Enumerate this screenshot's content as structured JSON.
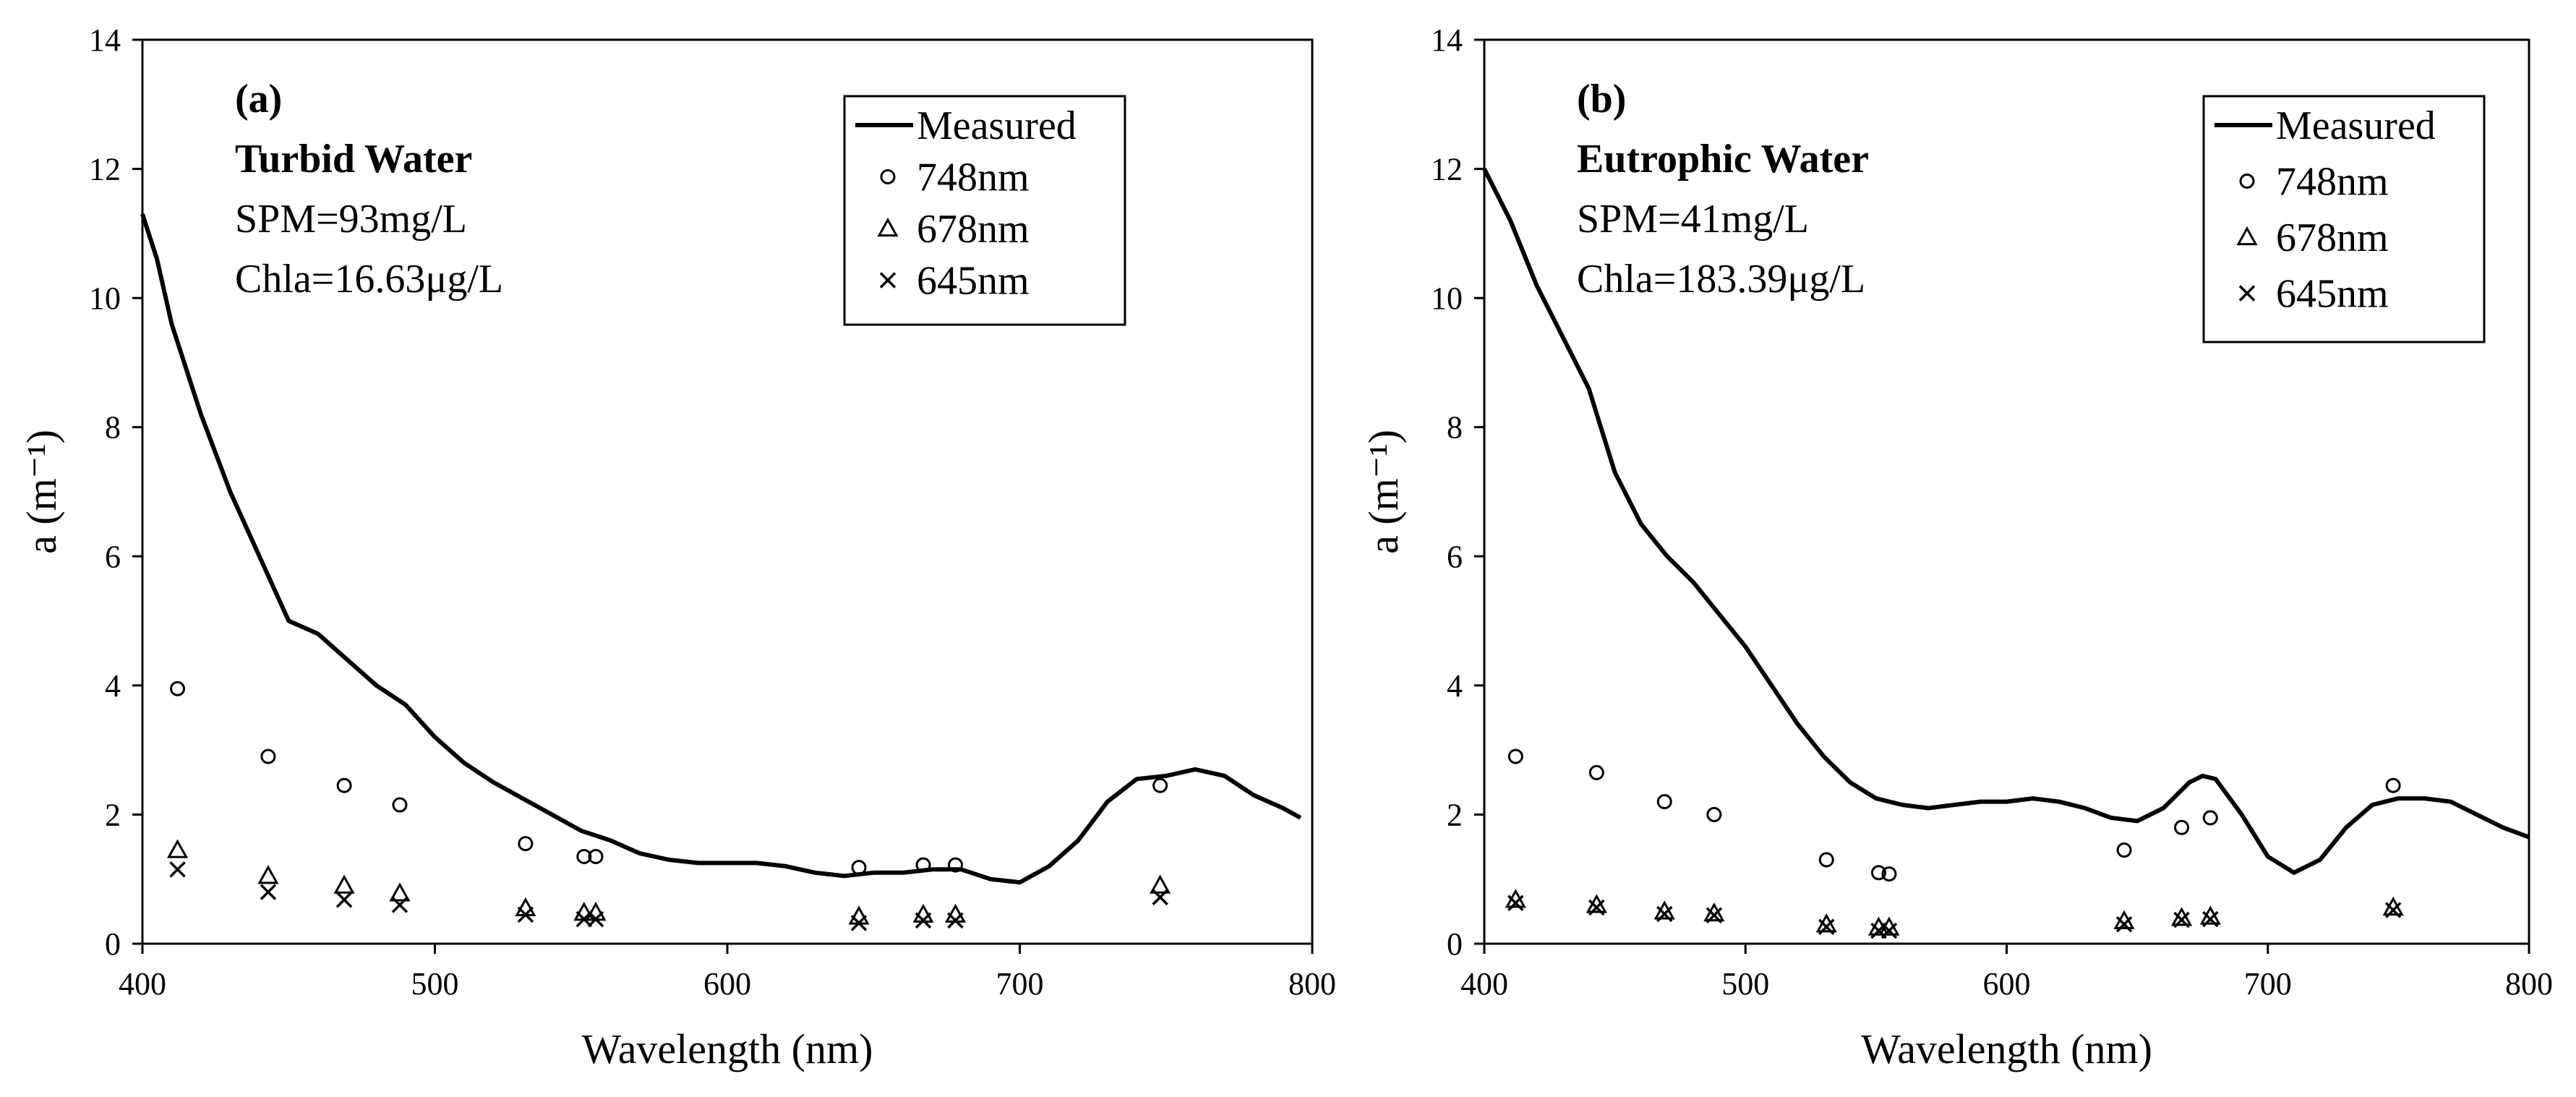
{
  "chart_data": [
    {
      "type": "line",
      "panel": "(a)",
      "title": "Turbid Water",
      "annotations": [
        "SPM=93mg/L",
        "Chla=16.63μg/L"
      ],
      "xlabel": "Wavelength (nm)",
      "ylabel": "a (m⁻¹)",
      "xlim": [
        400,
        800
      ],
      "ylim": [
        0,
        14
      ],
      "xticks": [
        "400",
        "500",
        "600",
        "700",
        "800"
      ],
      "yticks": [
        "0",
        "2",
        "4",
        "6",
        "8",
        "10",
        "12",
        "14"
      ],
      "legend_position": "top-right",
      "series": [
        {
          "name": "Measured",
          "style": "line",
          "x": [
            400,
            405,
            410,
            420,
            430,
            440,
            450,
            460,
            470,
            480,
            490,
            500,
            510,
            520,
            530,
            540,
            550,
            560,
            570,
            580,
            590,
            600,
            610,
            620,
            630,
            640,
            650,
            660,
            670,
            680,
            690,
            700,
            710,
            720,
            730,
            740,
            750,
            760,
            770,
            780,
            790,
            796
          ],
          "y": [
            11.3,
            10.6,
            9.6,
            8.2,
            7.0,
            6.0,
            5.0,
            4.8,
            4.4,
            4.0,
            3.7,
            3.2,
            2.8,
            2.5,
            2.25,
            2.0,
            1.75,
            1.6,
            1.4,
            1.3,
            1.25,
            1.25,
            1.25,
            1.2,
            1.1,
            1.05,
            1.1,
            1.1,
            1.15,
            1.15,
            1.0,
            0.95,
            1.2,
            1.6,
            2.2,
            2.55,
            2.6,
            2.7,
            2.6,
            2.3,
            2.1,
            1.95
          ]
        },
        {
          "name": "748nm",
          "style": "circle",
          "x": [
            412,
            443,
            469,
            488,
            531,
            551,
            555,
            645,
            667,
            678,
            748
          ],
          "y": [
            3.95,
            2.9,
            2.45,
            2.15,
            1.55,
            1.35,
            1.35,
            1.18,
            1.22,
            1.22,
            2.45
          ]
        },
        {
          "name": "678nm",
          "style": "triangle",
          "x": [
            412,
            443,
            469,
            488,
            531,
            551,
            555,
            645,
            667,
            678,
            748
          ],
          "y": [
            1.45,
            1.05,
            0.9,
            0.78,
            0.55,
            0.48,
            0.48,
            0.42,
            0.45,
            0.45,
            0.9
          ]
        },
        {
          "name": "645nm",
          "style": "x",
          "x": [
            412,
            443,
            469,
            488,
            531,
            551,
            555,
            645,
            667,
            678,
            748
          ],
          "y": [
            1.15,
            0.8,
            0.68,
            0.6,
            0.45,
            0.38,
            0.38,
            0.32,
            0.36,
            0.36,
            0.72
          ]
        }
      ]
    },
    {
      "type": "line",
      "panel": "(b)",
      "title": "Eutrophic Water",
      "annotations": [
        "SPM=41mg/L",
        "Chla=183.39μg/L"
      ],
      "xlabel": "Wavelength (nm)",
      "ylabel": "a (m⁻¹)",
      "xlim": [
        400,
        800
      ],
      "ylim": [
        0,
        14
      ],
      "xticks": [
        "400",
        "500",
        "600",
        "700",
        "800"
      ],
      "yticks": [
        "0",
        "2",
        "4",
        "6",
        "8",
        "10",
        "12",
        "14"
      ],
      "legend_position": "top-right",
      "series": [
        {
          "name": "Measured",
          "style": "line",
          "x": [
            400,
            410,
            420,
            430,
            440,
            450,
            460,
            470,
            480,
            490,
            500,
            510,
            520,
            530,
            540,
            550,
            560,
            570,
            580,
            590,
            600,
            610,
            620,
            630,
            640,
            650,
            660,
            670,
            675,
            680,
            690,
            700,
            710,
            720,
            730,
            740,
            750,
            760,
            770,
            780,
            790,
            800
          ],
          "y": [
            12.0,
            11.2,
            10.2,
            9.4,
            8.6,
            7.3,
            6.5,
            6.0,
            5.6,
            5.1,
            4.6,
            4.0,
            3.4,
            2.9,
            2.5,
            2.25,
            2.15,
            2.1,
            2.15,
            2.2,
            2.2,
            2.25,
            2.2,
            2.1,
            1.95,
            1.9,
            2.1,
            2.5,
            2.6,
            2.55,
            2.0,
            1.35,
            1.1,
            1.3,
            1.8,
            2.15,
            2.25,
            2.25,
            2.2,
            2.0,
            1.8,
            1.65
          ]
        },
        {
          "name": "748nm",
          "style": "circle",
          "x": [
            412,
            443,
            469,
            488,
            531,
            551,
            555,
            645,
            667,
            678,
            748
          ],
          "y": [
            2.9,
            2.65,
            2.2,
            2.0,
            1.3,
            1.1,
            1.08,
            1.45,
            1.8,
            1.95,
            2.45
          ]
        },
        {
          "name": "678nm",
          "style": "triangle",
          "x": [
            412,
            443,
            469,
            488,
            531,
            551,
            555,
            645,
            667,
            678,
            748
          ],
          "y": [
            0.68,
            0.6,
            0.5,
            0.47,
            0.3,
            0.25,
            0.25,
            0.35,
            0.4,
            0.42,
            0.56
          ]
        },
        {
          "name": "645nm",
          "style": "x",
          "x": [
            412,
            443,
            469,
            488,
            531,
            551,
            555,
            645,
            667,
            678,
            748
          ],
          "y": [
            0.63,
            0.56,
            0.46,
            0.44,
            0.26,
            0.2,
            0.2,
            0.3,
            0.37,
            0.38,
            0.52
          ]
        }
      ]
    }
  ]
}
